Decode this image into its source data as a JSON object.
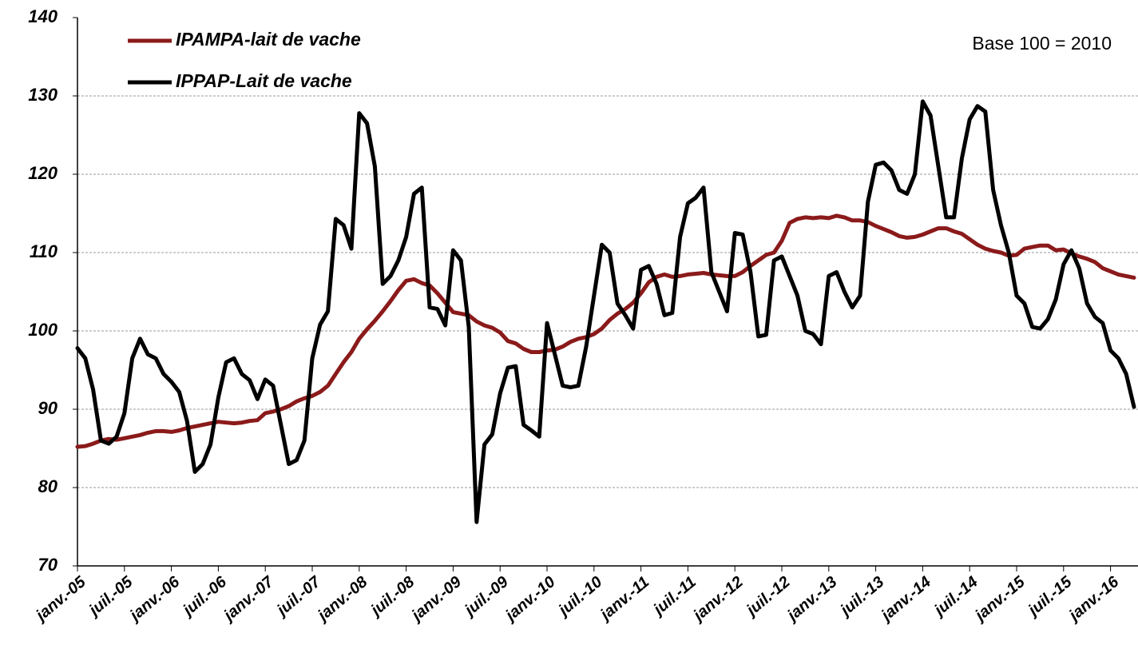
{
  "chart_data": {
    "type": "line",
    "annotation": "Base 100 = 2010",
    "categories": [
      "janv.-05",
      null,
      null,
      null,
      null,
      null,
      "juil.-05",
      null,
      null,
      null,
      null,
      null,
      "janv.-06",
      null,
      null,
      null,
      null,
      null,
      "juil.-06",
      null,
      null,
      null,
      null,
      null,
      "janv.-07",
      null,
      null,
      null,
      null,
      null,
      "juil.-07",
      null,
      null,
      null,
      null,
      null,
      "janv.-08",
      null,
      null,
      null,
      null,
      null,
      "juil.-08",
      null,
      null,
      null,
      null,
      null,
      "janv.-09",
      null,
      null,
      null,
      null,
      null,
      "juil.-09",
      null,
      null,
      null,
      null,
      null,
      "janv.-10",
      null,
      null,
      null,
      null,
      null,
      "juil.-10",
      null,
      null,
      null,
      null,
      null,
      "janv.-11",
      null,
      null,
      null,
      null,
      null,
      "juil.-11",
      null,
      null,
      null,
      null,
      null,
      "janv.-12",
      null,
      null,
      null,
      null,
      null,
      "juil.-12",
      null,
      null,
      null,
      null,
      null,
      "janv.-13",
      null,
      null,
      null,
      null,
      null,
      "juil.-13",
      null,
      null,
      null,
      null,
      null,
      "janv.-14",
      null,
      null,
      null,
      null,
      null,
      "juil.-14",
      null,
      null,
      null,
      null,
      null,
      "janv.-15",
      null,
      null,
      null,
      null,
      null,
      "juil.-15",
      null,
      null,
      null,
      null,
      null,
      "janv.-16",
      null,
      null,
      null
    ],
    "series": [
      {
        "name": "IPAMPA-lait de vache",
        "color": "#8b1a1a",
        "values": [
          85.2,
          85.3,
          85.6,
          86.0,
          86.2,
          86.1,
          86.3,
          86.5,
          86.7,
          87.0,
          87.2,
          87.2,
          87.1,
          87.3,
          87.6,
          87.8,
          88.0,
          88.2,
          88.4,
          88.3,
          88.2,
          88.3,
          88.5,
          88.6,
          89.5,
          89.7,
          90.0,
          90.4,
          91.0,
          91.4,
          91.7,
          92.2,
          93.0,
          94.5,
          96.0,
          97.3,
          99.0,
          100.2,
          101.3,
          102.5,
          103.8,
          105.2,
          106.4,
          106.6,
          106.1,
          105.8,
          104.8,
          103.6,
          102.4,
          102.2,
          102.0,
          101.2,
          100.7,
          100.4,
          99.8,
          98.7,
          98.4,
          97.7,
          97.3,
          97.3,
          97.5,
          97.6,
          98.0,
          98.6,
          99.0,
          99.2,
          99.6,
          100.3,
          101.4,
          102.2,
          102.8,
          103.6,
          104.8,
          106.2,
          106.9,
          107.2,
          106.9,
          107.0,
          107.2,
          107.3,
          107.4,
          107.2,
          107.1,
          107.0,
          107.0,
          107.5,
          108.3,
          109.0,
          109.7,
          110.0,
          111.5,
          113.8,
          114.3,
          114.5,
          114.4,
          114.5,
          114.4,
          114.7,
          114.5,
          114.1,
          114.1,
          113.9,
          113.4,
          113.0,
          112.6,
          112.1,
          111.9,
          112.0,
          112.3,
          112.7,
          113.1,
          113.1,
          112.7,
          112.4,
          111.7,
          111.0,
          110.5,
          110.2,
          110.0,
          109.6,
          109.7,
          110.5,
          110.7,
          110.9,
          110.9,
          110.3,
          110.4,
          109.9,
          109.5,
          109.2,
          108.8,
          108.0,
          107.6,
          107.2,
          107.0,
          106.8
        ]
      },
      {
        "name": "IPPAP-Lait de vache",
        "color": "#000000",
        "values": [
          97.8,
          96.5,
          92.5,
          86.0,
          85.6,
          86.5,
          89.5,
          96.5,
          99.0,
          97.0,
          96.5,
          94.5,
          93.5,
          92.2,
          88.5,
          82.0,
          83.0,
          85.5,
          91.5,
          96.0,
          96.5,
          94.5,
          93.7,
          91.3,
          93.8,
          93.0,
          88.0,
          83.0,
          83.5,
          86.0,
          96.5,
          100.8,
          102.5,
          114.3,
          113.5,
          110.5,
          127.8,
          126.5,
          121.0,
          106.0,
          107.0,
          109.0,
          112.0,
          117.5,
          118.3,
          103.0,
          102.8,
          100.7,
          110.3,
          109.0,
          100.5,
          75.6,
          85.5,
          86.8,
          92.0,
          95.3,
          95.5,
          88.0,
          87.3,
          86.5,
          101.0,
          97.0,
          93.0,
          92.8,
          93.0,
          98.0,
          104.5,
          111.0,
          110.0,
          103.5,
          102.0,
          100.3,
          107.8,
          108.3,
          106.0,
          102.0,
          102.3,
          112.0,
          116.3,
          117.0,
          118.3,
          107.5,
          105.0,
          102.5,
          112.5,
          112.3,
          107.5,
          99.3,
          99.5,
          109.0,
          109.5,
          107.0,
          104.5,
          100.0,
          99.6,
          98.3,
          107.0,
          107.5,
          105.0,
          103.0,
          104.5,
          116.5,
          121.2,
          121.5,
          120.5,
          118.0,
          117.5,
          120.0,
          129.3,
          127.5,
          121.0,
          114.5,
          114.5,
          122.0,
          127.0,
          128.7,
          128.0,
          118.0,
          113.5,
          110.0,
          104.5,
          103.5,
          100.5,
          100.3,
          101.5,
          104.0,
          108.5,
          110.3,
          108.0,
          103.5,
          101.8,
          101.0,
          97.5,
          96.5,
          94.5,
          90.3
        ]
      }
    ],
    "ylim": [
      70,
      140
    ],
    "yticks": [
      70,
      80,
      90,
      100,
      110,
      120,
      130,
      140
    ],
    "grid": true
  }
}
